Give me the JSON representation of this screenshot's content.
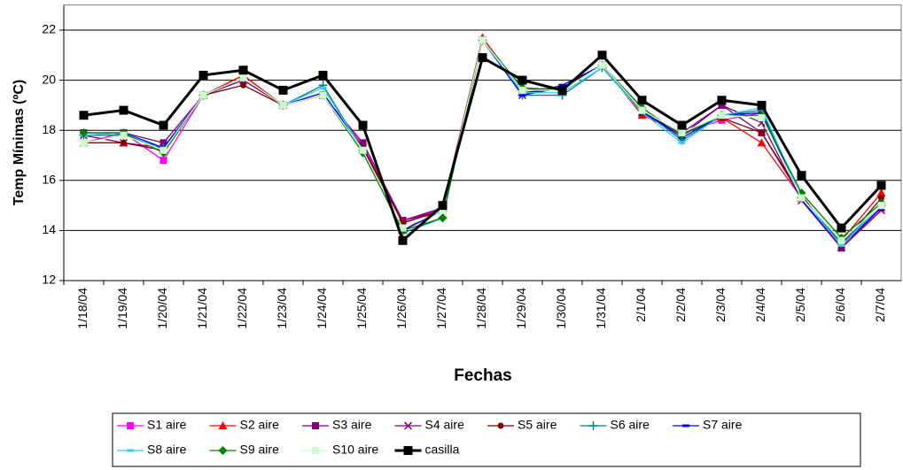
{
  "chart_data": {
    "type": "line",
    "y_label": "Temp Mínimas (ºC)",
    "x_label": "Fechas",
    "categories": [
      "1/18/04",
      "1/19/04",
      "1/20/04",
      "1/21/04",
      "1/22/04",
      "1/23/04",
      "1/24/04",
      "1/25/04",
      "1/26/04",
      "1/27/04",
      "1/28/04",
      "1/29/04",
      "1/30/04",
      "1/31/04",
      "2/1/04",
      "2/2/04",
      "2/3/04",
      "2/4/04",
      "2/5/04",
      "2/6/04",
      "2/7/04"
    ],
    "ylim": [
      12,
      23
    ],
    "yticks": [
      12,
      14,
      16,
      18,
      20,
      22
    ],
    "grid": true,
    "legend": "bottom",
    "series": [
      {
        "name": "S1 aire",
        "color": "#ff00ff",
        "marker": "square",
        "values": [
          17.5,
          17.9,
          16.8,
          19.4,
          20.1,
          19.0,
          19.4,
          17.4,
          14.3,
          14.9,
          21.6,
          19.6,
          19.7,
          20.6,
          18.7,
          17.9,
          18.4,
          18.7,
          15.3,
          13.6,
          14.9
        ]
      },
      {
        "name": "S2 aire",
        "color": "#ff0000",
        "marker": "triangle",
        "values": [
          17.5,
          17.5,
          17.2,
          19.4,
          20.2,
          19.0,
          19.4,
          17.3,
          14.0,
          14.9,
          21.7,
          19.6,
          19.7,
          20.6,
          18.6,
          17.9,
          18.5,
          17.5,
          15.3,
          13.6,
          15.5
        ]
      },
      {
        "name": "S3 aire",
        "color": "#800080",
        "marker": "square",
        "values": [
          17.9,
          17.9,
          17.5,
          19.4,
          20.1,
          19.0,
          19.4,
          17.5,
          14.4,
          14.9,
          21.6,
          19.6,
          19.7,
          20.6,
          18.7,
          17.9,
          19.0,
          17.9,
          15.3,
          13.3,
          14.9
        ]
      },
      {
        "name": "S4 aire",
        "color": "#800080",
        "marker": "x",
        "values": [
          17.8,
          17.5,
          17.3,
          19.4,
          20.0,
          19.0,
          19.4,
          17.3,
          14.4,
          14.8,
          21.6,
          19.4,
          19.7,
          20.6,
          18.7,
          17.8,
          19.0,
          18.3,
          15.2,
          13.3,
          14.8
        ]
      },
      {
        "name": "S5 aire",
        "color": "#800000",
        "marker": "circle",
        "values": [
          17.5,
          17.5,
          17.2,
          19.4,
          19.8,
          19.0,
          19.4,
          17.3,
          14.3,
          14.8,
          21.6,
          19.5,
          19.7,
          20.6,
          18.7,
          17.9,
          18.5,
          17.9,
          15.4,
          13.4,
          15.3
        ]
      },
      {
        "name": "S6 aire",
        "color": "#008080",
        "marker": "plus",
        "values": [
          17.8,
          17.8,
          17.3,
          19.4,
          20.1,
          19.0,
          19.8,
          17.2,
          13.9,
          14.5,
          21.6,
          19.4,
          19.4,
          20.5,
          18.8,
          17.6,
          18.6,
          18.8,
          15.3,
          13.5,
          15.0
        ]
      },
      {
        "name": "S7 aire",
        "color": "#0000ff",
        "marker": "dash",
        "values": [
          17.8,
          17.9,
          17.3,
          19.4,
          20.1,
          19.0,
          19.5,
          17.2,
          14.0,
          14.8,
          21.6,
          19.4,
          19.8,
          20.6,
          18.8,
          17.7,
          18.6,
          18.7,
          15.2,
          13.4,
          14.9
        ]
      },
      {
        "name": "S8 aire",
        "color": "#33ccff",
        "marker": "dash",
        "values": [
          17.8,
          17.9,
          17.2,
          19.4,
          20.1,
          19.0,
          19.7,
          17.2,
          14.0,
          14.5,
          21.6,
          19.5,
          19.5,
          20.5,
          18.7,
          17.5,
          18.6,
          18.9,
          15.3,
          13.4,
          15.0
        ]
      },
      {
        "name": "S9 aire",
        "color": "#008000",
        "marker": "diamond",
        "values": [
          17.9,
          17.9,
          17.1,
          19.4,
          20.1,
          19.0,
          19.4,
          17.1,
          14.0,
          14.5,
          21.6,
          19.7,
          19.6,
          20.6,
          18.9,
          17.8,
          18.6,
          18.6,
          15.5,
          13.7,
          15.1
        ]
      },
      {
        "name": "S10 aire",
        "color": "#ccffcc",
        "marker": "square",
        "values": [
          17.5,
          17.8,
          17.2,
          19.4,
          20.1,
          19.0,
          19.4,
          17.2,
          14.1,
          14.8,
          21.6,
          19.6,
          19.6,
          20.6,
          18.8,
          17.9,
          18.6,
          18.5,
          15.3,
          13.6,
          15.0
        ]
      },
      {
        "name": "casilla",
        "color": "#000000",
        "marker": "square",
        "values": [
          18.6,
          18.8,
          18.2,
          20.2,
          20.4,
          19.6,
          20.2,
          18.2,
          13.6,
          15.0,
          20.9,
          20.0,
          19.6,
          21.0,
          19.2,
          18.2,
          19.2,
          19.0,
          16.2,
          14.1,
          15.8
        ]
      }
    ]
  }
}
